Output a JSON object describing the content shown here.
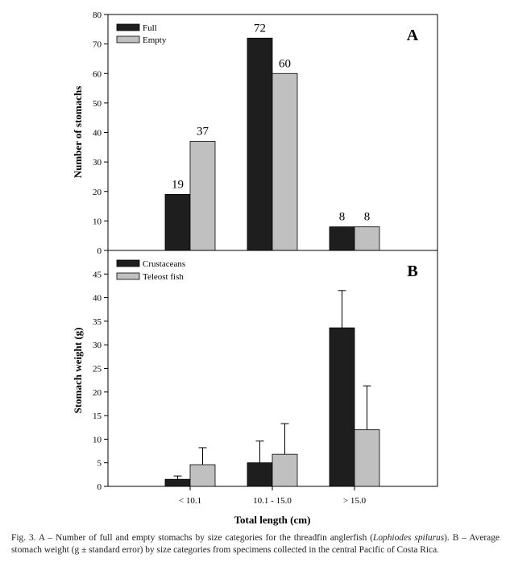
{
  "chart_data": [
    {
      "type": "bar",
      "panel_label": "A",
      "ylabel": "Number of stomachs",
      "ylim": [
        0,
        80
      ],
      "yticks": [
        0,
        10,
        20,
        30,
        40,
        50,
        60,
        70,
        80
      ],
      "categories": [
        "< 10.1",
        "10.1 - 15.0",
        "> 15.0"
      ],
      "series": [
        {
          "name": "Full",
          "values": [
            19,
            72,
            8
          ],
          "color": "#1e1e1e"
        },
        {
          "name": "Empty",
          "values": [
            37,
            60,
            8
          ],
          "color": "#c0c0c0"
        }
      ],
      "data_labels": [
        [
          "19",
          "72",
          "8"
        ],
        [
          "37",
          "60",
          "8"
        ]
      ],
      "legend_placement": "top-left",
      "grid": false
    },
    {
      "type": "bar",
      "panel_label": "B",
      "ylabel": "Stomach weight (g)",
      "xlabel": "Total length (cm)",
      "ylim": [
        0,
        50
      ],
      "yticks": [
        0,
        5,
        10,
        15,
        20,
        25,
        30,
        35,
        40,
        45
      ],
      "categories": [
        "< 10.1",
        "10.1 - 15.0",
        "> 15.0"
      ],
      "series": [
        {
          "name": "Crustaceans",
          "values": [
            1.5,
            5.0,
            33.6
          ],
          "errors": [
            0.7,
            4.6,
            7.9
          ],
          "color": "#1e1e1e"
        },
        {
          "name": "Teleost fish",
          "values": [
            4.6,
            6.8,
            12.0
          ],
          "errors": [
            3.6,
            6.5,
            9.3
          ],
          "color": "#c0c0c0"
        }
      ],
      "legend_placement": "top-left",
      "grid": false
    }
  ],
  "caption": {
    "part1": "Fig. 3. A – Number of full and empty stomachs by size categories for the threadfin anglerfish (",
    "species": "Lophiodes spilurus",
    "part2": "). B – Average stomach weight (g ± standard error) by size categories from specimens collected in the central Pacific of Costa Rica."
  }
}
